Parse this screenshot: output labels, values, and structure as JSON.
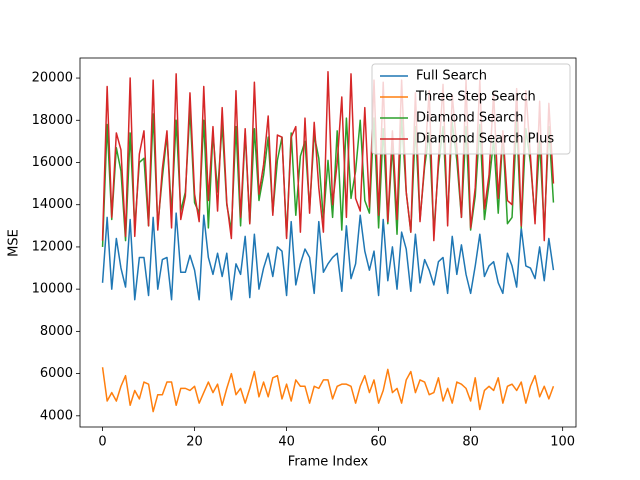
{
  "chart_data": {
    "type": "line",
    "x_label": "Frame Index",
    "y_label": "MSE",
    "x": [
      0,
      1,
      2,
      3,
      4,
      5,
      6,
      7,
      8,
      9,
      10,
      11,
      12,
      13,
      14,
      15,
      16,
      17,
      18,
      19,
      20,
      21,
      22,
      23,
      24,
      25,
      26,
      27,
      28,
      29,
      30,
      31,
      32,
      33,
      34,
      35,
      36,
      37,
      38,
      39,
      40,
      41,
      42,
      43,
      44,
      45,
      46,
      47,
      48,
      49,
      50,
      51,
      52,
      53,
      54,
      55,
      56,
      57,
      58,
      59,
      60,
      61,
      62,
      63,
      64,
      65,
      66,
      67,
      68,
      69,
      70,
      71,
      72,
      73,
      74,
      75,
      76,
      77,
      78,
      79,
      80,
      81,
      82,
      83,
      84,
      85,
      86,
      87,
      88,
      89,
      90,
      91,
      92,
      93,
      94,
      95,
      96,
      97,
      98
    ],
    "xlim": [
      -4.9,
      102.9
    ],
    "xticks": [
      0,
      20,
      40,
      60,
      80,
      100
    ],
    "ylim": [
      3470,
      20950
    ],
    "yticks": [
      4000,
      6000,
      8000,
      10000,
      12000,
      14000,
      16000,
      18000,
      20000
    ],
    "legend": "upper right",
    "series": [
      {
        "name": "Full Search",
        "color": "#1f77b4",
        "values": [
          10300,
          13400,
          10000,
          12400,
          11000,
          10100,
          13300,
          9500,
          11500,
          11500,
          9700,
          13400,
          10000,
          11400,
          11500,
          9500,
          13600,
          10800,
          10800,
          11600,
          10900,
          9500,
          13500,
          11500,
          10700,
          11700,
          10600,
          11700,
          9500,
          11200,
          10700,
          12500,
          9600,
          12600,
          10000,
          11000,
          11700,
          10600,
          12000,
          11800,
          9700,
          13200,
          10200,
          11200,
          11900,
          11500,
          9800,
          13200,
          10800,
          11200,
          11500,
          11700,
          9900,
          13000,
          10500,
          11200,
          13500,
          11800,
          10900,
          11800,
          9700,
          13300,
          10400,
          12000,
          10000,
          12700,
          11900,
          9900,
          12600,
          10300,
          11400,
          10900,
          10200,
          11300,
          11500,
          9800,
          12500,
          10700,
          12100,
          10700,
          9800,
          11100,
          12600,
          10600,
          11100,
          11300,
          10300,
          9800,
          11700,
          11100,
          10100,
          12900,
          11100,
          11000,
          10500,
          12000,
          10400,
          12400,
          10900
        ]
      },
      {
        "name": "Three Step Search",
        "color": "#ff7f0e",
        "values": [
          6300,
          4700,
          5100,
          4700,
          5400,
          5900,
          4500,
          5200,
          4800,
          5600,
          5500,
          4200,
          5000,
          5000,
          5600,
          5600,
          4500,
          5300,
          5300,
          5200,
          5400,
          4600,
          5100,
          5600,
          5100,
          5500,
          4500,
          5300,
          6000,
          5000,
          5300,
          4600,
          5300,
          6100,
          4900,
          5600,
          4900,
          5800,
          5900,
          4800,
          5500,
          4700,
          5700,
          5400,
          5400,
          4600,
          5400,
          5300,
          5700,
          5700,
          4800,
          5400,
          5500,
          5500,
          5400,
          4600,
          5400,
          5900,
          5100,
          5700,
          4600,
          5200,
          6200,
          5100,
          5300,
          4600,
          5700,
          6100,
          5100,
          5700,
          5600,
          5000,
          5100,
          5800,
          4700,
          5300,
          4600,
          5600,
          5500,
          5300,
          4700,
          5800,
          4300,
          5200,
          5400,
          5200,
          5800,
          4600,
          5400,
          5500,
          5200,
          5600,
          4600,
          5400,
          5900,
          4900,
          5400,
          4800,
          5400
        ]
      },
      {
        "name": "Diamond Search",
        "color": "#2ca02c",
        "values": [
          12000,
          17800,
          13300,
          16700,
          15600,
          12300,
          17400,
          12900,
          16000,
          16200,
          13000,
          18300,
          13000,
          15300,
          17300,
          13600,
          18000,
          13700,
          14600,
          18500,
          14100,
          13600,
          18000,
          12900,
          17400,
          14600,
          17800,
          14000,
          12800,
          17700,
          13000,
          17400,
          13100,
          17600,
          14200,
          15400,
          17200,
          13600,
          16100,
          17200,
          12500,
          17400,
          13500,
          16300,
          17000,
          13800,
          17300,
          16200,
          13300,
          16100,
          13400,
          17500,
          12800,
          18100,
          14300,
          15600,
          18000,
          14200,
          13600,
          18100,
          12900,
          17600,
          13100,
          16800,
          12600,
          18100,
          14600,
          12700,
          17700,
          13300,
          15800,
          17400,
          12700,
          15800,
          17700,
          13400,
          17900,
          16100,
          13400,
          17700,
          12800,
          14400,
          17800,
          13300,
          15000,
          17100,
          13600,
          17300,
          13100,
          13400,
          17900,
          12900,
          17600,
          16000,
          13300,
          17000,
          12800,
          17700,
          14100
        ]
      },
      {
        "name": "Diamond Search Plus",
        "color": "#d62728",
        "values": [
          12300,
          19600,
          13400,
          17400,
          16600,
          12500,
          20000,
          12500,
          16400,
          17500,
          13000,
          19900,
          12800,
          15700,
          17500,
          12900,
          20200,
          13300,
          14400,
          19300,
          14500,
          13200,
          19600,
          14200,
          17700,
          13700,
          18600,
          14100,
          12400,
          19400,
          13400,
          17600,
          13100,
          19800,
          14500,
          15900,
          18200,
          13500,
          17300,
          17200,
          12400,
          17200,
          17700,
          12700,
          18100,
          13600,
          17900,
          14800,
          12700,
          20300,
          14000,
          16000,
          19100,
          13400,
          20200,
          14300,
          13700,
          18600,
          13900,
          19900,
          13500,
          19800,
          13200,
          17500,
          13300,
          19900,
          14600,
          12700,
          19300,
          13200,
          16000,
          19400,
          12300,
          16100,
          19700,
          13000,
          19200,
          16700,
          13400,
          19900,
          12900,
          14800,
          19900,
          13800,
          15400,
          19300,
          14300,
          17500,
          14200,
          14000,
          19500,
          13000,
          19400,
          16300,
          13100,
          18900,
          12300,
          18800,
          15000
        ]
      }
    ]
  }
}
